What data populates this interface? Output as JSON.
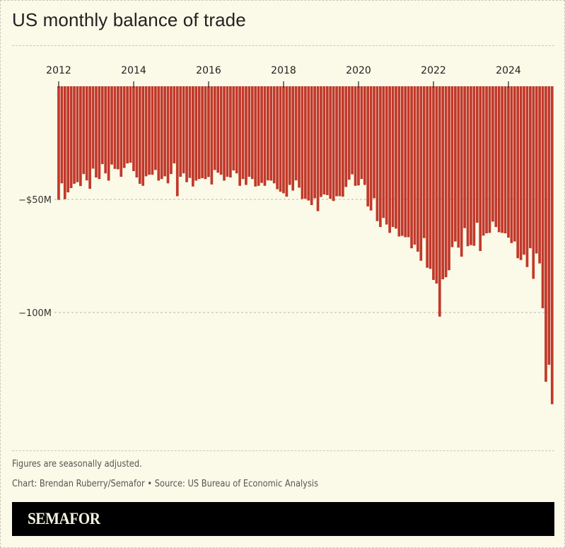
{
  "chart_data": {
    "type": "bar",
    "title": "US monthly balance of trade",
    "xlabel": "",
    "ylabel": "",
    "x_ticks": [
      "2012",
      "2014",
      "2016",
      "2018",
      "2020",
      "2022",
      "2024"
    ],
    "y_ticks": [
      {
        "value": -50,
        "label": "−$50M"
      },
      {
        "value": -100,
        "label": "−100M"
      }
    ],
    "ylim": [
      -145,
      0
    ],
    "grid": true,
    "bar_color": "#c0392b",
    "x": [
      "2012-01",
      "2012-02",
      "2012-03",
      "2012-04",
      "2012-05",
      "2012-06",
      "2012-07",
      "2012-08",
      "2012-09",
      "2012-10",
      "2012-11",
      "2012-12",
      "2013-01",
      "2013-02",
      "2013-03",
      "2013-04",
      "2013-05",
      "2013-06",
      "2013-07",
      "2013-08",
      "2013-09",
      "2013-10",
      "2013-11",
      "2013-12",
      "2014-01",
      "2014-02",
      "2014-03",
      "2014-04",
      "2014-05",
      "2014-06",
      "2014-07",
      "2014-08",
      "2014-09",
      "2014-10",
      "2014-11",
      "2014-12",
      "2015-01",
      "2015-02",
      "2015-03",
      "2015-04",
      "2015-05",
      "2015-06",
      "2015-07",
      "2015-08",
      "2015-09",
      "2015-10",
      "2015-11",
      "2015-12",
      "2016-01",
      "2016-02",
      "2016-03",
      "2016-04",
      "2016-05",
      "2016-06",
      "2016-07",
      "2016-08",
      "2016-09",
      "2016-10",
      "2016-11",
      "2016-12",
      "2017-01",
      "2017-02",
      "2017-03",
      "2017-04",
      "2017-05",
      "2017-06",
      "2017-07",
      "2017-08",
      "2017-09",
      "2017-10",
      "2017-11",
      "2017-12",
      "2018-01",
      "2018-02",
      "2018-03",
      "2018-04",
      "2018-05",
      "2018-06",
      "2018-07",
      "2018-08",
      "2018-09",
      "2018-10",
      "2018-11",
      "2018-12",
      "2019-01",
      "2019-02",
      "2019-03",
      "2019-04",
      "2019-05",
      "2019-06",
      "2019-07",
      "2019-08",
      "2019-09",
      "2019-10",
      "2019-11",
      "2019-12",
      "2020-01",
      "2020-02",
      "2020-03",
      "2020-04",
      "2020-05",
      "2020-06",
      "2020-07",
      "2020-08",
      "2020-09",
      "2020-10",
      "2020-11",
      "2020-12",
      "2021-01",
      "2021-02",
      "2021-03",
      "2021-04",
      "2021-05",
      "2021-06",
      "2021-07",
      "2021-08",
      "2021-09",
      "2021-10",
      "2021-11",
      "2021-12",
      "2022-01",
      "2022-02",
      "2022-03",
      "2022-04",
      "2022-05",
      "2022-06",
      "2022-07",
      "2022-08",
      "2022-09",
      "2022-10",
      "2022-11",
      "2022-12",
      "2023-01",
      "2023-02",
      "2023-03",
      "2023-04",
      "2023-05",
      "2023-06",
      "2023-07",
      "2023-08",
      "2023-09",
      "2023-10",
      "2023-11",
      "2023-12",
      "2024-01",
      "2024-02",
      "2024-03",
      "2024-04",
      "2024-05",
      "2024-06",
      "2024-07",
      "2024-08",
      "2024-09",
      "2024-10",
      "2024-11",
      "2024-12",
      "2025-01",
      "2025-02",
      "2025-03"
    ],
    "values": [
      -50.2,
      -42.9,
      -49.9,
      -46.9,
      -45,
      -43.1,
      -42.4,
      -44.1,
      -38.8,
      -41.6,
      -45.3,
      -36.4,
      -40.3,
      -41,
      -34.4,
      -38.5,
      -41.7,
      -34.6,
      -36.5,
      -36.7,
      -40,
      -36.1,
      -34.1,
      -33.8,
      -37.5,
      -40.3,
      -43.1,
      -44,
      -39.8,
      -39.1,
      -39.1,
      -37,
      -41.7,
      -41,
      -39.8,
      -42.9,
      -38.8,
      -34.1,
      -48.6,
      -40,
      -38.5,
      -42.4,
      -40.5,
      -44.3,
      -41.7,
      -41,
      -40.6,
      -41,
      -40.1,
      -43.4,
      -37,
      -38.2,
      -39.1,
      -41.7,
      -40,
      -40.3,
      -37.2,
      -38.5,
      -44,
      -41,
      -43.6,
      -40,
      -41,
      -44.3,
      -44,
      -42.7,
      -44,
      -41.6,
      -41.7,
      -42.9,
      -45.5,
      -46.6,
      -47.3,
      -48.8,
      -43.6,
      -46.1,
      -41.6,
      -44.8,
      -49.8,
      -49.7,
      -50.5,
      -52.5,
      -49.5,
      -55.2,
      -48.9,
      -47.8,
      -48.1,
      -49.7,
      -50.7,
      -48.6,
      -48.6,
      -48.8,
      -44.5,
      -41.3,
      -38.9,
      -44,
      -43.8,
      -41,
      -43.6,
      -53.1,
      -54.9,
      -49.5,
      -59.6,
      -62.2,
      -58.2,
      -61.1,
      -64.8,
      -62.2,
      -62.9,
      -66.4,
      -66.1,
      -66.7,
      -66.7,
      -71.6,
      -70,
      -73.1,
      -77.1,
      -67.1,
      -80.2,
      -80.7,
      -85.6,
      -87.2,
      -101.8,
      -85.3,
      -84.4,
      -81.3,
      -71.1,
      -68.6,
      -71.3,
      -75.3,
      -62.7,
      -70.7,
      -70.2,
      -70.5,
      -60.3,
      -72.8,
      -66,
      -65,
      -64.8,
      -59.8,
      -62.2,
      -64.5,
      -64.8,
      -65,
      -66.9,
      -69.3,
      -68.6,
      -76,
      -76.8,
      -74.4,
      -79.9,
      -71.6,
      -85.1,
      -73.9,
      -78.3,
      -98.1,
      -130.6,
      -123.1,
      -140.5
    ]
  },
  "footer": {
    "note": "Figures are seasonally adjusted.",
    "credit": "Chart: Brendan Ruberry/Semafor • Source: US Bureau of Economic Analysis",
    "brand": "SEMAFOR"
  }
}
